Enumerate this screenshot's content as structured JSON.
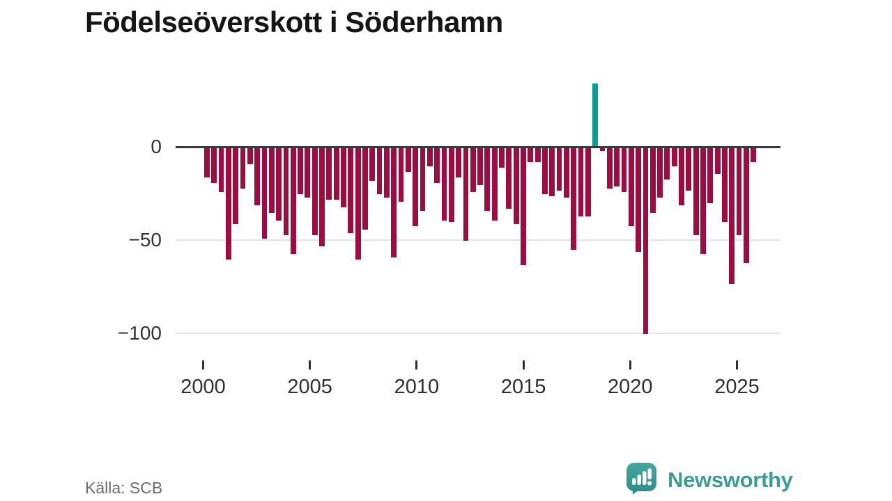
{
  "title": "Födelseöverskott i Söderhamn",
  "source": "Källa: SCB",
  "brand": {
    "name": "Newsworthy"
  },
  "colors": {
    "bar": "#9d0d3f",
    "highlight": "#0a9d96",
    "axis": "#3a3a3a",
    "grid": "#e4e4e4",
    "tick_label": "#2f2f2f",
    "source_text": "#6b6b76",
    "brand_teal": "#3d9d96"
  },
  "y_axis": {
    "labels": [
      "0",
      "−50",
      "−100"
    ]
  },
  "x_axis": {
    "labels": [
      "2000",
      "2005",
      "2010",
      "2015",
      "2020",
      "2025"
    ]
  },
  "chart_data": {
    "type": "bar",
    "title": "Födelseöverskott i Söderhamn",
    "xlabel": "",
    "ylabel": "",
    "x_start_year": 2000,
    "periods_per_year": 3,
    "x_range": [
      2000,
      2025.67
    ],
    "ylim": [
      -105,
      40
    ],
    "grid": true,
    "legend_position": "none",
    "yticks": [
      0,
      -50,
      -100
    ],
    "xticks": [
      2000,
      2005,
      2010,
      2015,
      2020,
      2025
    ],
    "highlight_index": 54,
    "highlight_value": 34,
    "values": [
      -16,
      -19,
      -24,
      -60,
      -41,
      -22,
      -9,
      -31,
      -49,
      -35,
      -39,
      -47,
      -57,
      -25,
      -27,
      -47,
      -53,
      -28,
      -28,
      -32,
      -46,
      -60,
      -44,
      -18,
      -25,
      -27,
      -59,
      -29,
      -13,
      -42,
      -34,
      -10,
      -19,
      -39,
      -40,
      -16,
      -50,
      -24,
      -20,
      -34,
      -39,
      -11,
      -33,
      -41,
      -63,
      -8,
      -8,
      -25,
      -26,
      -23,
      -27,
      -55,
      -37,
      -37,
      34,
      -2,
      -22,
      -21,
      -24,
      -42,
      -56,
      -100,
      -35,
      -27,
      -17,
      -10,
      -31,
      -23,
      -47,
      -57,
      -30,
      -14,
      -40,
      -73,
      -47,
      -62,
      -8
    ]
  }
}
